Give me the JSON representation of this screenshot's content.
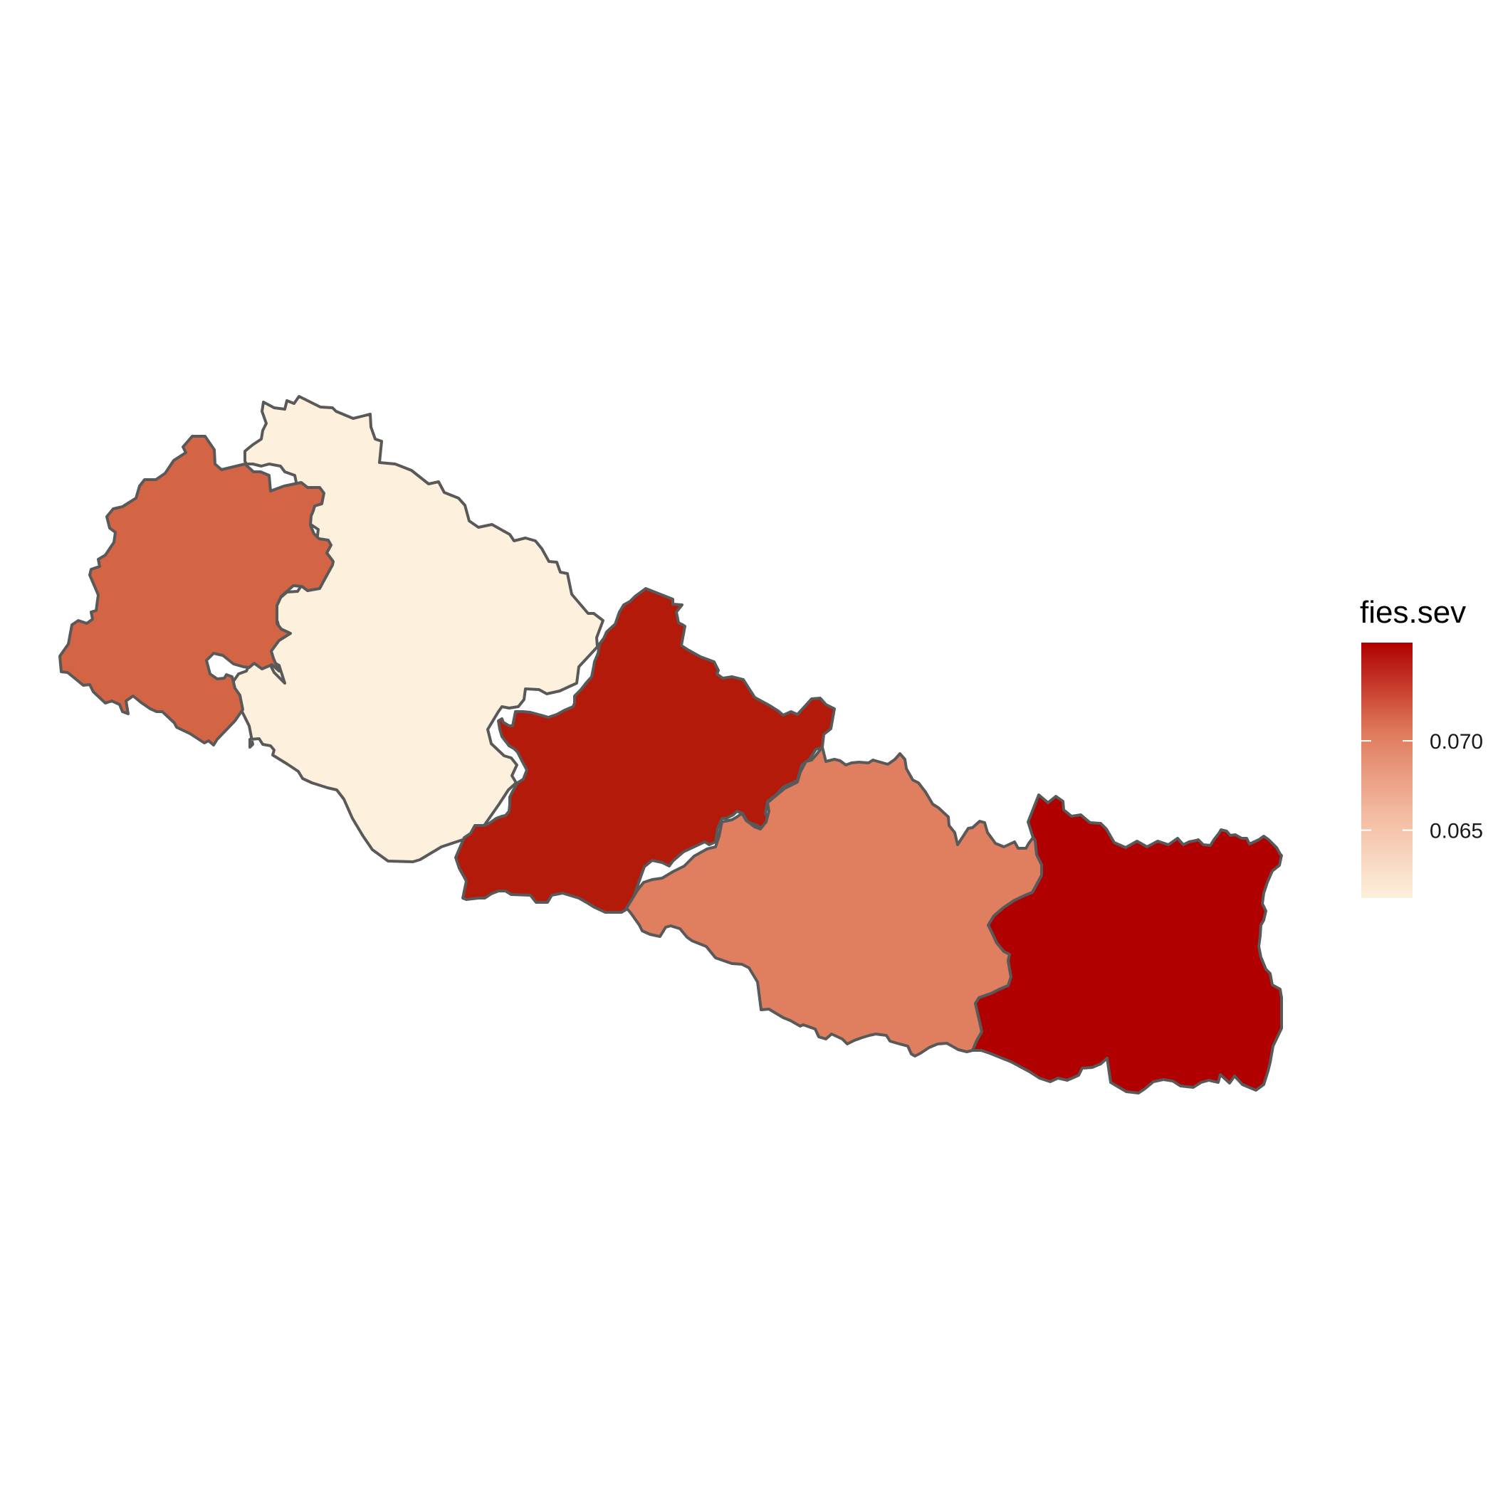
{
  "legend": {
    "title": "fies.sev",
    "ticks": [
      {
        "label": "0.070",
        "value": 0.07
      },
      {
        "label": "0.065",
        "value": 0.065
      }
    ],
    "min_value": 0.0612,
    "max_value": 0.0755,
    "color_low": "#fdf0dc",
    "color_high": "#b00000",
    "border_color": "#595959"
  },
  "regions": [
    {
      "id": "region-far-west",
      "color": "#d36444"
    },
    {
      "id": "region-mid-west",
      "color": "#fdf0dc"
    },
    {
      "id": "region-central-west",
      "color": "#b41a0a"
    },
    {
      "id": "region-central-east",
      "color": "#df7f5f"
    },
    {
      "id": "region-east",
      "color": "#b00000"
    }
  ]
}
